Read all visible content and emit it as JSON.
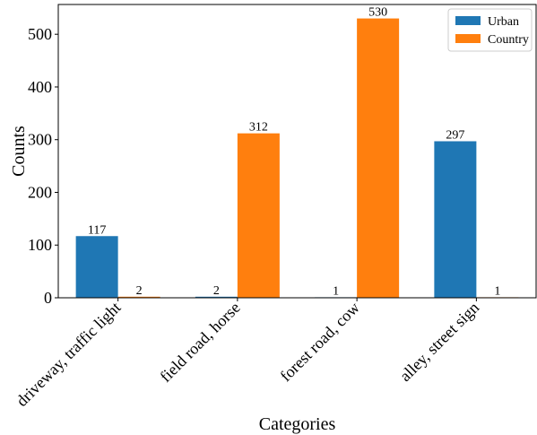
{
  "chart_data": {
    "type": "bar",
    "categories": [
      "driveway, traffic light",
      "field road, horse",
      "forest road, cow",
      "alley, street sign"
    ],
    "series": [
      {
        "name": "Urban",
        "values": [
          117,
          2,
          1,
          297
        ],
        "color": "#1f77b4"
      },
      {
        "name": "Country",
        "values": [
          2,
          312,
          530,
          1
        ],
        "color": "#ff7f0e"
      }
    ],
    "xlabel": "Categories",
    "ylabel": "Counts",
    "yticks": [
      0,
      100,
      200,
      300,
      400,
      500
    ],
    "ylim": [
      0,
      556.5
    ],
    "legend_position": "top-right",
    "grid": false
  }
}
